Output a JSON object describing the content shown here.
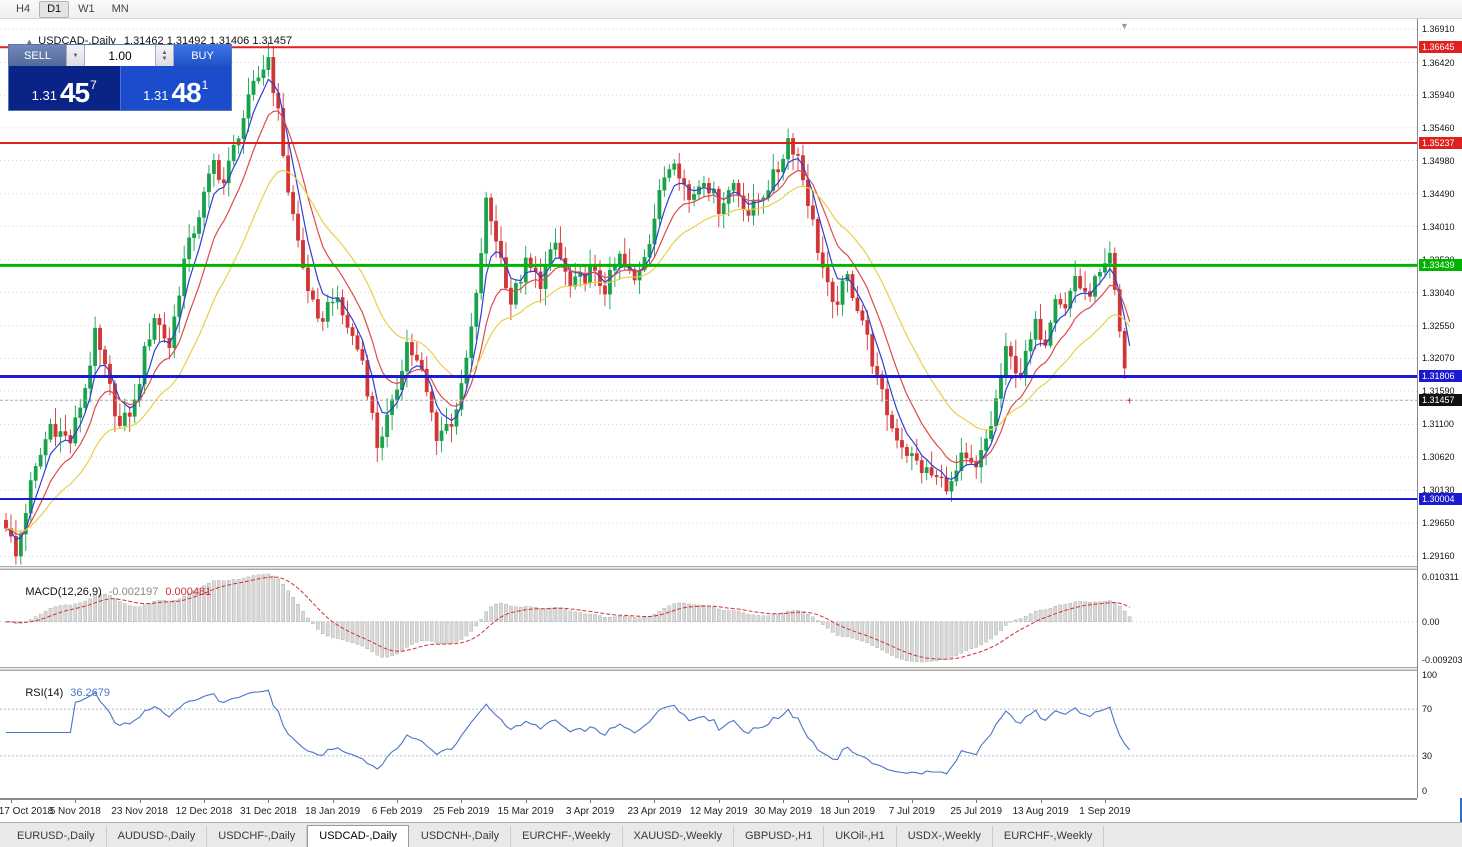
{
  "toolbar": {
    "timeframes": [
      "H4",
      "D1",
      "W1",
      "MN"
    ],
    "active": "D1"
  },
  "chart": {
    "header": {
      "collapse_icon": "▲",
      "title": "USDCAD-,Daily",
      "ohlc_text": "1.31462 1.31492 1.31406 1.31457"
    },
    "current_price": {
      "label": "1.31457",
      "value": 1.31457
    }
  },
  "trade": {
    "sell_label": "SELL",
    "buy_label": "BUY",
    "volume": "1.00",
    "sell_price": {
      "prefix": "1.31",
      "big": "45",
      "sup": "7"
    },
    "buy_price": {
      "prefix": "1.31",
      "big": "48",
      "sup": "1"
    }
  },
  "icons": {
    "volume_down": "▼",
    "volume_up": "▲",
    "spin_up": "▲",
    "spin_down": "▼",
    "shift_marker": "▼"
  },
  "price_axis": {
    "ticks": [
      "1.36910",
      "1.36420",
      "1.35940",
      "1.35460",
      "1.34980",
      "1.34490",
      "1.34010",
      "1.33520",
      "1.33040",
      "1.32550",
      "1.32070",
      "1.31590",
      "1.31100",
      "1.30620",
      "1.30130",
      "1.29650",
      "1.29160"
    ]
  },
  "levels": [
    {
      "price": 1.36645,
      "label": "1.36645",
      "color_key": "level_red",
      "width": 2
    },
    {
      "price": 1.35237,
      "label": "1.35237",
      "color_key": "level_red",
      "width": 2
    },
    {
      "price": 1.33439,
      "label": "1.33439",
      "color_key": "level_green",
      "width": 3
    },
    {
      "price": 1.31806,
      "label": "1.31806",
      "color_key": "level_blue",
      "width": 3
    },
    {
      "price": 1.30004,
      "label": "1.30004",
      "color_key": "level_blue",
      "width": 2
    }
  ],
  "macd": {
    "title": "MACD(12,26,9)",
    "main_value": "-0.002197",
    "signal_value": "0.000481",
    "axis_labels": [
      "0.010311",
      "0.00",
      "-0.009203"
    ]
  },
  "rsi": {
    "title": "RSI(14)",
    "value": "36.2679",
    "axis_labels": [
      "100",
      "70",
      "30",
      "0"
    ]
  },
  "date_axis": {
    "labels": [
      "17 Oct 2018",
      "5 Nov 2018",
      "23 Nov 2018",
      "12 Dec 2018",
      "31 Dec 2018",
      "18 Jan 2019",
      "6 Feb 2019",
      "25 Feb 2019",
      "15 Mar 2019",
      "3 Apr 2019",
      "23 Apr 2019",
      "12 May 2019",
      "30 May 2019",
      "18 Jun 2019",
      "7 Jul 2019",
      "25 Jul 2019",
      "13 Aug 2019",
      "1 Sep 2019"
    ],
    "first_label_index": 1,
    "candles_per_label": 13
  },
  "tabs": [
    {
      "label": "EURUSD-,Daily",
      "active": false
    },
    {
      "label": "AUDUSD-,Daily",
      "active": false
    },
    {
      "label": "USDCHF-,Daily",
      "active": false
    },
    {
      "label": "USDCAD-,Daily",
      "active": true
    },
    {
      "label": "USDCNH-,Daily",
      "active": false
    },
    {
      "label": "EURCHF-,Weekly",
      "active": false
    },
    {
      "label": "XAUUSD-,Weekly",
      "active": false
    },
    {
      "label": "GBPUSD-,H1",
      "active": false
    },
    {
      "label": "UKOil-,H1",
      "active": false
    },
    {
      "label": "USDX-,Weekly",
      "active": false
    },
    {
      "label": "EURCHF-,Weekly",
      "active": false
    }
  ],
  "colors": {
    "bull": "#18a24c",
    "bear": "#d23535",
    "ma_fast": "#2e3fd4",
    "ma_mid": "#dd4b4b",
    "ma_slow": "#e8cf4a",
    "macd_hist": "#d8d8d8",
    "macd_hist_border": "#a8a8a8",
    "macd_signal": "#cc3333",
    "rsi_line": "#4a74c8",
    "grid": "#d8d8d8",
    "level_red": "#e01f1f",
    "level_green": "#00b400",
    "level_blue": "#1a1ad0",
    "current_line": "#aaaaaa",
    "current_badge_bg": "#111111"
  },
  "chart_data": {
    "type": "candlestick",
    "symbol": "USDCAD-",
    "timeframe": "Daily",
    "num_candles": 228,
    "ylim": [
      1.2902,
      1.3706
    ],
    "ohlc_current": {
      "open": 1.31462,
      "high": 1.31492,
      "low": 1.31406,
      "close": 1.31457
    },
    "price_waypoints": [
      [
        0,
        1.2965
      ],
      [
        2,
        1.2915
      ],
      [
        5,
        1.302
      ],
      [
        9,
        1.311
      ],
      [
        13,
        1.3085
      ],
      [
        16,
        1.3165
      ],
      [
        18,
        1.324
      ],
      [
        20,
        1.319
      ],
      [
        23,
        1.3105
      ],
      [
        26,
        1.314
      ],
      [
        28,
        1.3215
      ],
      [
        30,
        1.327
      ],
      [
        33,
        1.3225
      ],
      [
        36,
        1.335
      ],
      [
        39,
        1.342
      ],
      [
        42,
        1.3495
      ],
      [
        44,
        1.3465
      ],
      [
        47,
        1.354
      ],
      [
        50,
        1.3605
      ],
      [
        53,
        1.365
      ],
      [
        55,
        1.3565
      ],
      [
        57,
        1.3455
      ],
      [
        60,
        1.334
      ],
      [
        63,
        1.3255
      ],
      [
        66,
        1.33
      ],
      [
        69,
        1.3255
      ],
      [
        72,
        1.3205
      ],
      [
        75,
        1.308
      ],
      [
        78,
        1.3135
      ],
      [
        81,
        1.323
      ],
      [
        84,
        1.3185
      ],
      [
        87,
        1.3095
      ],
      [
        90,
        1.3115
      ],
      [
        92,
        1.316
      ],
      [
        95,
        1.3295
      ],
      [
        97,
        1.3435
      ],
      [
        99,
        1.3385
      ],
      [
        102,
        1.329
      ],
      [
        105,
        1.3345
      ],
      [
        108,
        1.332
      ],
      [
        111,
        1.3375
      ],
      [
        114,
        1.331
      ],
      [
        118,
        1.3335
      ],
      [
        121,
        1.331
      ],
      [
        124,
        1.3355
      ],
      [
        127,
        1.332
      ],
      [
        130,
        1.3385
      ],
      [
        133,
        1.3475
      ],
      [
        135,
        1.3505
      ],
      [
        138,
        1.344
      ],
      [
        141,
        1.3475
      ],
      [
        144,
        1.343
      ],
      [
        147,
        1.3465
      ],
      [
        150,
        1.342
      ],
      [
        153,
        1.345
      ],
      [
        156,
        1.3485
      ],
      [
        158,
        1.353
      ],
      [
        160,
        1.3505
      ],
      [
        162,
        1.344
      ],
      [
        164,
        1.337
      ],
      [
        167,
        1.328
      ],
      [
        170,
        1.3325
      ],
      [
        173,
        1.3265
      ],
      [
        176,
        1.3175
      ],
      [
        179,
        1.3105
      ],
      [
        182,
        1.307
      ],
      [
        185,
        1.3045
      ],
      [
        188,
        1.303
      ],
      [
        191,
        1.302
      ],
      [
        193,
        1.3058
      ],
      [
        196,
        1.3042
      ],
      [
        199,
        1.311
      ],
      [
        202,
        1.3215
      ],
      [
        205,
        1.3185
      ],
      [
        208,
        1.3255
      ],
      [
        210,
        1.3235
      ],
      [
        212,
        1.3305
      ],
      [
        214,
        1.328
      ],
      [
        216,
        1.333
      ],
      [
        218,
        1.3295
      ],
      [
        220,
        1.332
      ],
      [
        222,
        1.3335
      ],
      [
        223,
        1.3355
      ],
      [
        225,
        1.3245
      ],
      [
        227,
        1.3146
      ]
    ],
    "moving_averages": [
      {
        "period": 5,
        "color_key": "ma_fast"
      },
      {
        "period": 11,
        "color_key": "ma_mid"
      },
      {
        "period": 24,
        "color_key": "ma_slow"
      }
    ],
    "horizontal_levels": [
      1.36645,
      1.35237,
      1.33439,
      1.31806,
      1.30004
    ],
    "indicators": {
      "macd": {
        "fast": 12,
        "slow": 26,
        "signal": 9,
        "current_main": -0.002197,
        "current_signal": 0.000481
      },
      "rsi": {
        "period": 14,
        "current": 36.2679,
        "levels": [
          70,
          30
        ]
      }
    }
  }
}
